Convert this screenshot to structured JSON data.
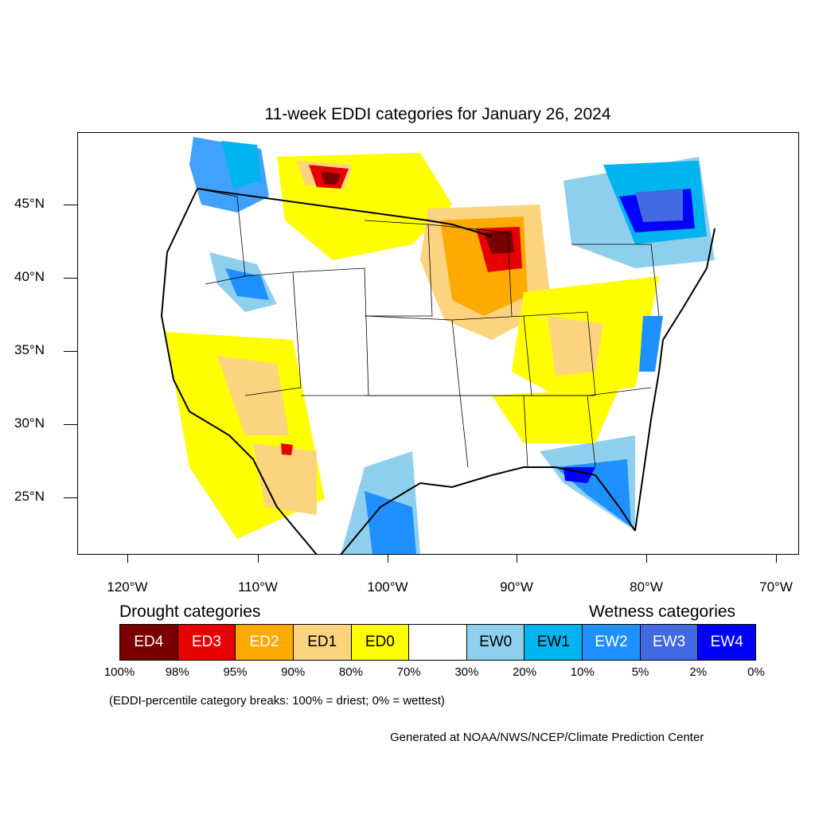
{
  "title": "11-week EDDI categories for January 26, 2024",
  "latitude_labels": [
    "45°N",
    "40°N",
    "35°N",
    "30°N",
    "25°N"
  ],
  "longitude_labels": [
    "120°W",
    "110°W",
    "100°W",
    "90°W",
    "80°W",
    "70°W"
  ],
  "legend": {
    "drought_title": "Drought categories",
    "wetness_title": "Wetness categories",
    "categories": [
      {
        "label": "ED4",
        "color": "#7a0000",
        "text_color": "#ffffff"
      },
      {
        "label": "ED3",
        "color": "#e60000",
        "text_color": "#ffffff"
      },
      {
        "label": "ED2",
        "color": "#ffaa00",
        "text_color": "#ffffff"
      },
      {
        "label": "ED1",
        "color": "#fcd37f",
        "text_color": "#000000"
      },
      {
        "label": "ED0",
        "color": "#ffff00",
        "text_color": "#000000"
      },
      {
        "label": "",
        "color": "#ffffff",
        "text_color": "#000000"
      },
      {
        "label": "EW0",
        "color": "#8fcfee",
        "text_color": "#000000"
      },
      {
        "label": "EW1",
        "color": "#00b4f0",
        "text_color": "#000000"
      },
      {
        "label": "EW2",
        "color": "#1e90ff",
        "text_color": "#ffffff"
      },
      {
        "label": "EW3",
        "color": "#4169e1",
        "text_color": "#ffffff"
      },
      {
        "label": "EW4",
        "color": "#0000ff",
        "text_color": "#ffffff"
      }
    ],
    "percent_breaks": [
      "100%",
      "98%",
      "95%",
      "90%",
      "80%",
      "70%",
      "30%",
      "20%",
      "10%",
      "5%",
      "2%",
      "0%"
    ]
  },
  "note": "(EDDI-percentile category breaks: 100% = driest; 0% = wettest)",
  "credit": "Generated at NOAA/NWS/NCEP/Climate Prediction Center"
}
